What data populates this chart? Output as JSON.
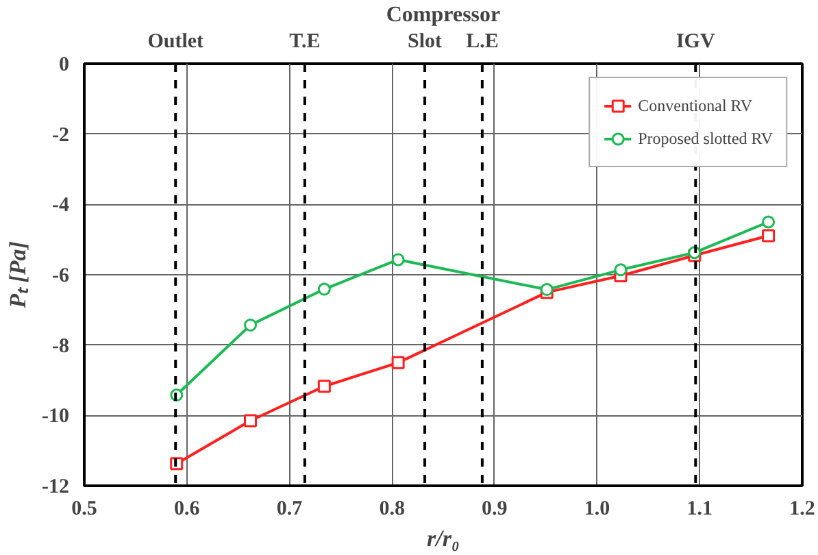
{
  "chart_data": {
    "type": "line",
    "title": "Compressor",
    "xlabel": "r/r₀",
    "ylabel": "Pₜ [Pa]",
    "x": [
      0.59,
      0.662,
      0.734,
      0.806,
      0.951,
      1.023,
      1.095,
      1.167
    ],
    "series": [
      {
        "name": "Conventional RV",
        "color": "#ff2020",
        "marker": "square",
        "values": [
          -11.37,
          -10.15,
          -9.17,
          -8.5,
          -6.5,
          -6.03,
          -5.45,
          -4.89
        ]
      },
      {
        "name": "Proposed slotted RV",
        "color": "#1db954",
        "marker": "circle",
        "values": [
          -9.42,
          -7.43,
          -6.41,
          -5.57,
          -6.42,
          -5.86,
          -5.37,
          -4.5
        ]
      }
    ],
    "xlim": [
      0.5,
      1.2
    ],
    "ylim": [
      -12,
      0
    ],
    "xticks": [
      0.5,
      0.6,
      0.7,
      0.8,
      0.9,
      {
        "value": 1.0,
        "label": "1.0"
      },
      1.1,
      1.2
    ],
    "yticks": [
      -12,
      -10,
      -8,
      -6,
      -4,
      -2,
      0
    ],
    "ref_lines": [
      {
        "axis": "x",
        "value": 0.589,
        "label": "Outlet",
        "line_style": "dashed",
        "color": "#000000"
      },
      {
        "axis": "x",
        "value": 0.715,
        "label": "T.E",
        "line_style": "dashed",
        "color": "#000000"
      },
      {
        "axis": "x",
        "value": 0.832,
        "label": "Slot",
        "line_style": "dashed",
        "color": "#000000"
      },
      {
        "axis": "x",
        "value": 0.888,
        "label": "L.E",
        "line_style": "dashed",
        "color": "#000000"
      },
      {
        "axis": "x",
        "value": 1.096,
        "label": "IGV",
        "line_style": "dashed",
        "color": "#000000"
      }
    ],
    "grid": true,
    "legend": "top right",
    "line_style": "solid"
  }
}
